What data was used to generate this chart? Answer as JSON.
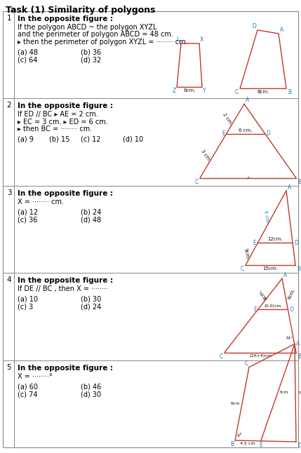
{
  "title": "Task (1) Similarity of polygons",
  "bg_color": "#ffffff",
  "sections": [
    {
      "number": "1",
      "header": "In the opposite figure :",
      "lines": [
        "If the polygon ABCD ~ the polygon XYZL",
        "and the perimeter of polygon ABCD = 48 cm.",
        "▸ then the perimeter of polygon XYZL = ········ cm."
      ],
      "opts2": [
        [
          "(a) 48",
          "(b) 36"
        ],
        [
          "(c) 64",
          "(d) 32"
        ]
      ]
    },
    {
      "number": "2",
      "header": "In the opposite figure :",
      "lines": [
        "If ED // BC ▸ AE = 2 cm.",
        "▸ EC = 3 cm. ▸ ED = 6 cm.",
        "▸ then BC = ········ cm."
      ],
      "opts1": [
        [
          "(a) 9",
          "(b) 15",
          "(c) 12",
          "(d) 10"
        ]
      ]
    },
    {
      "number": "3",
      "header": "In the opposite figure :",
      "lines": [
        "X = ········ cm."
      ],
      "opts2": [
        [
          "(a) 12",
          "(b) 24"
        ],
        [
          "(c) 36",
          "(d) 48"
        ]
      ]
    },
    {
      "number": "4",
      "header": "In the opposite figure :",
      "lines": [
        "If DE // BC , then X = ········"
      ],
      "opts2": [
        [
          "(a) 10",
          "(b) 30"
        ],
        [
          "(c) 3",
          "(d) 24"
        ]
      ]
    },
    {
      "number": "5",
      "header": "In the opposite figure :",
      "lines": [
        "X = ········°"
      ],
      "opts2": [
        [
          "(a) 60",
          "(b) 46"
        ],
        [
          "(c) 74",
          "(d) 30"
        ]
      ]
    }
  ],
  "red": "#c0392b",
  "cyan": "#1a7abf",
  "dark": "#111111",
  "gray": "#888888"
}
